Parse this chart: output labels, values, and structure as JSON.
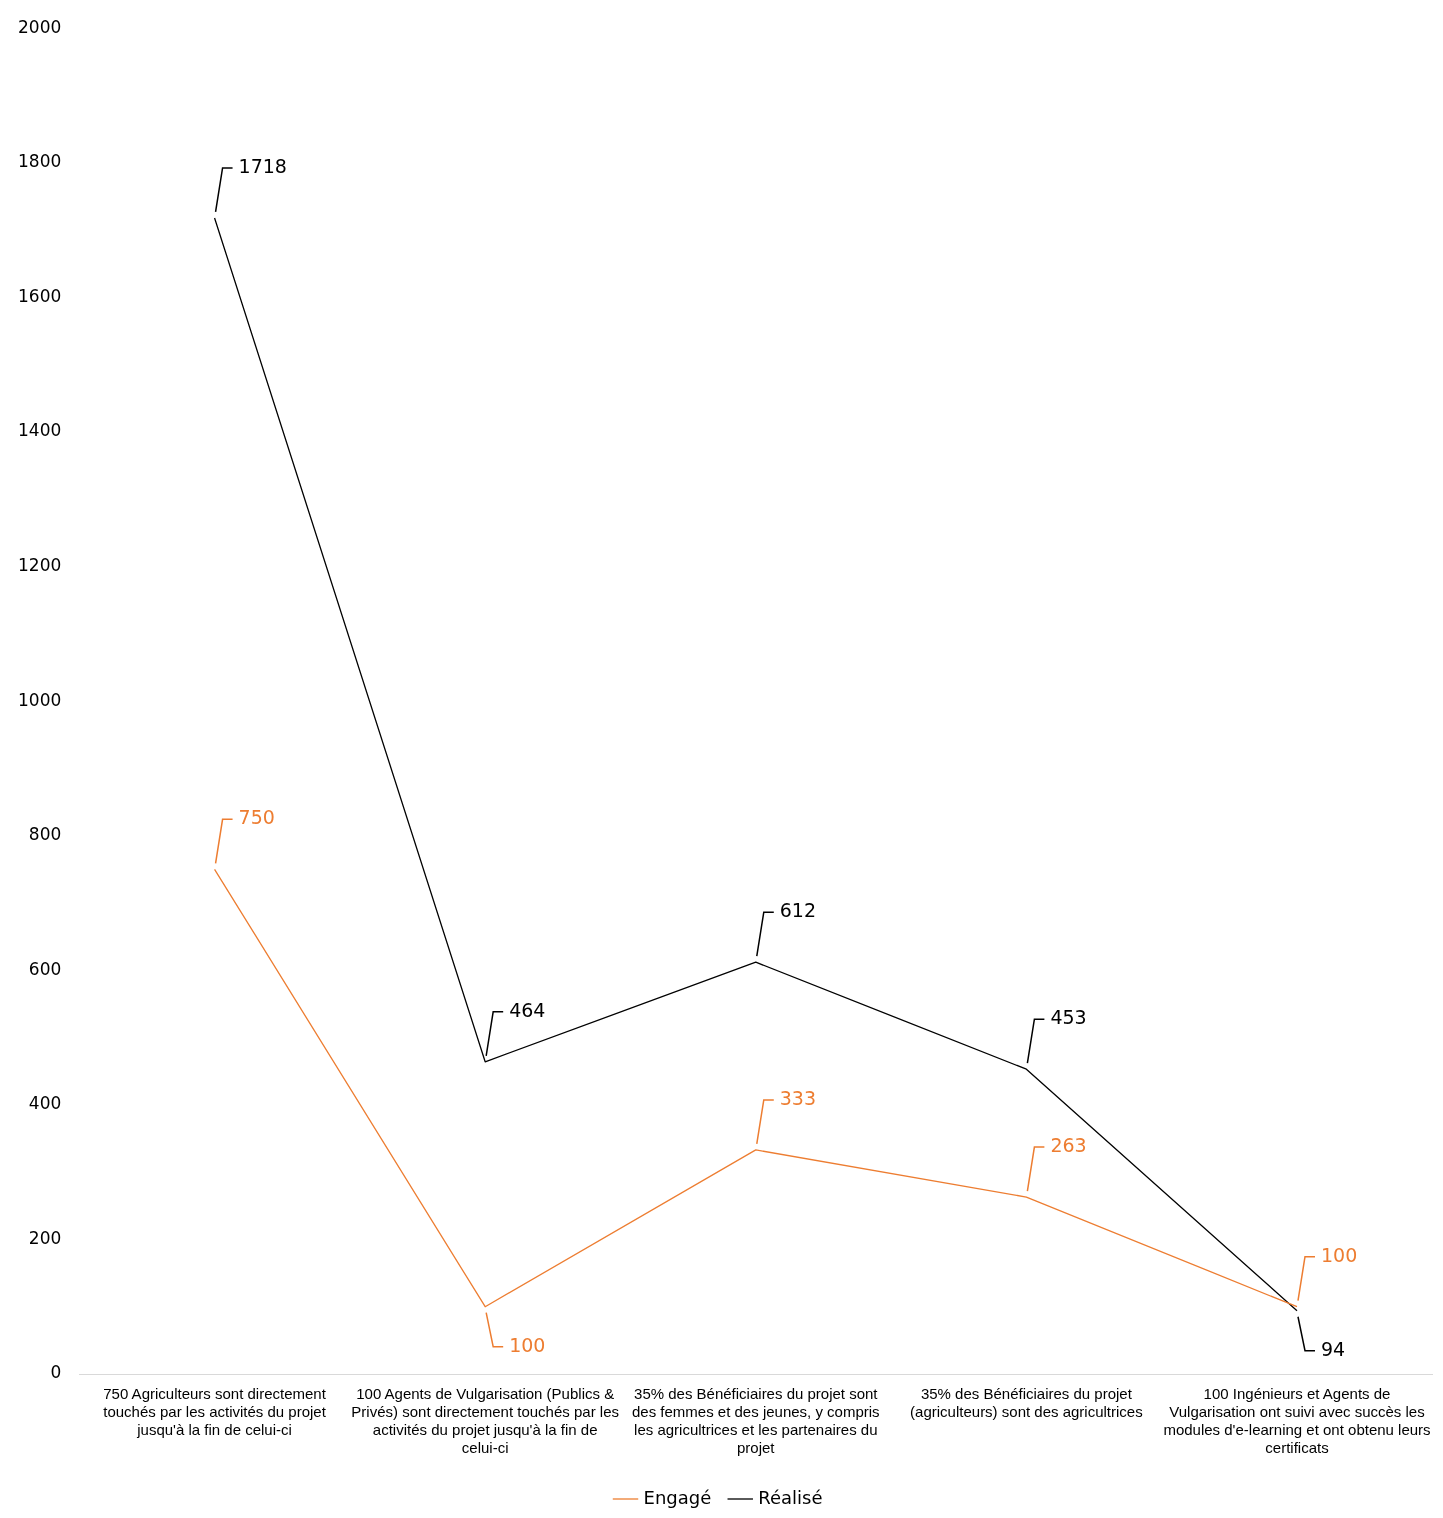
{
  "chart_data": {
    "type": "line",
    "categories": [
      "750 Agriculteurs sont directement touchés par les activités du projet jusqu'à la fin de celui-ci",
      "100 Agents de Vulgarisation (Publics & Privés) sont directement touchés par les activités du projet jusqu'à la fin de celui-ci",
      "35% des Bénéficiaires du projet sont des femmes et des jeunes, y compris les agricultrices et les partenaires du projet",
      "35% des Bénéficiaires du projet (agriculteurs) sont des agricultrices",
      "100 Ingénieurs et Agents de Vulgarisation ont suivi avec succès les modules d'e-learning et ont obtenu leurs certificats"
    ],
    "series": [
      {
        "name": "Engagé",
        "color": "#ed7d31",
        "values": [
          750,
          100,
          333,
          263,
          100
        ]
      },
      {
        "name": "Réalisé",
        "color": "#000000",
        "values": [
          1718,
          464,
          612,
          453,
          94
        ]
      }
    ],
    "ylim": [
      0,
      2000
    ],
    "yticks": [
      0,
      200,
      400,
      600,
      800,
      1000,
      1200,
      1400,
      1600,
      1800,
      2000
    ],
    "grid": false,
    "legend": "bottom",
    "data_labels": true,
    "line_style": "solid",
    "marker": "none"
  }
}
